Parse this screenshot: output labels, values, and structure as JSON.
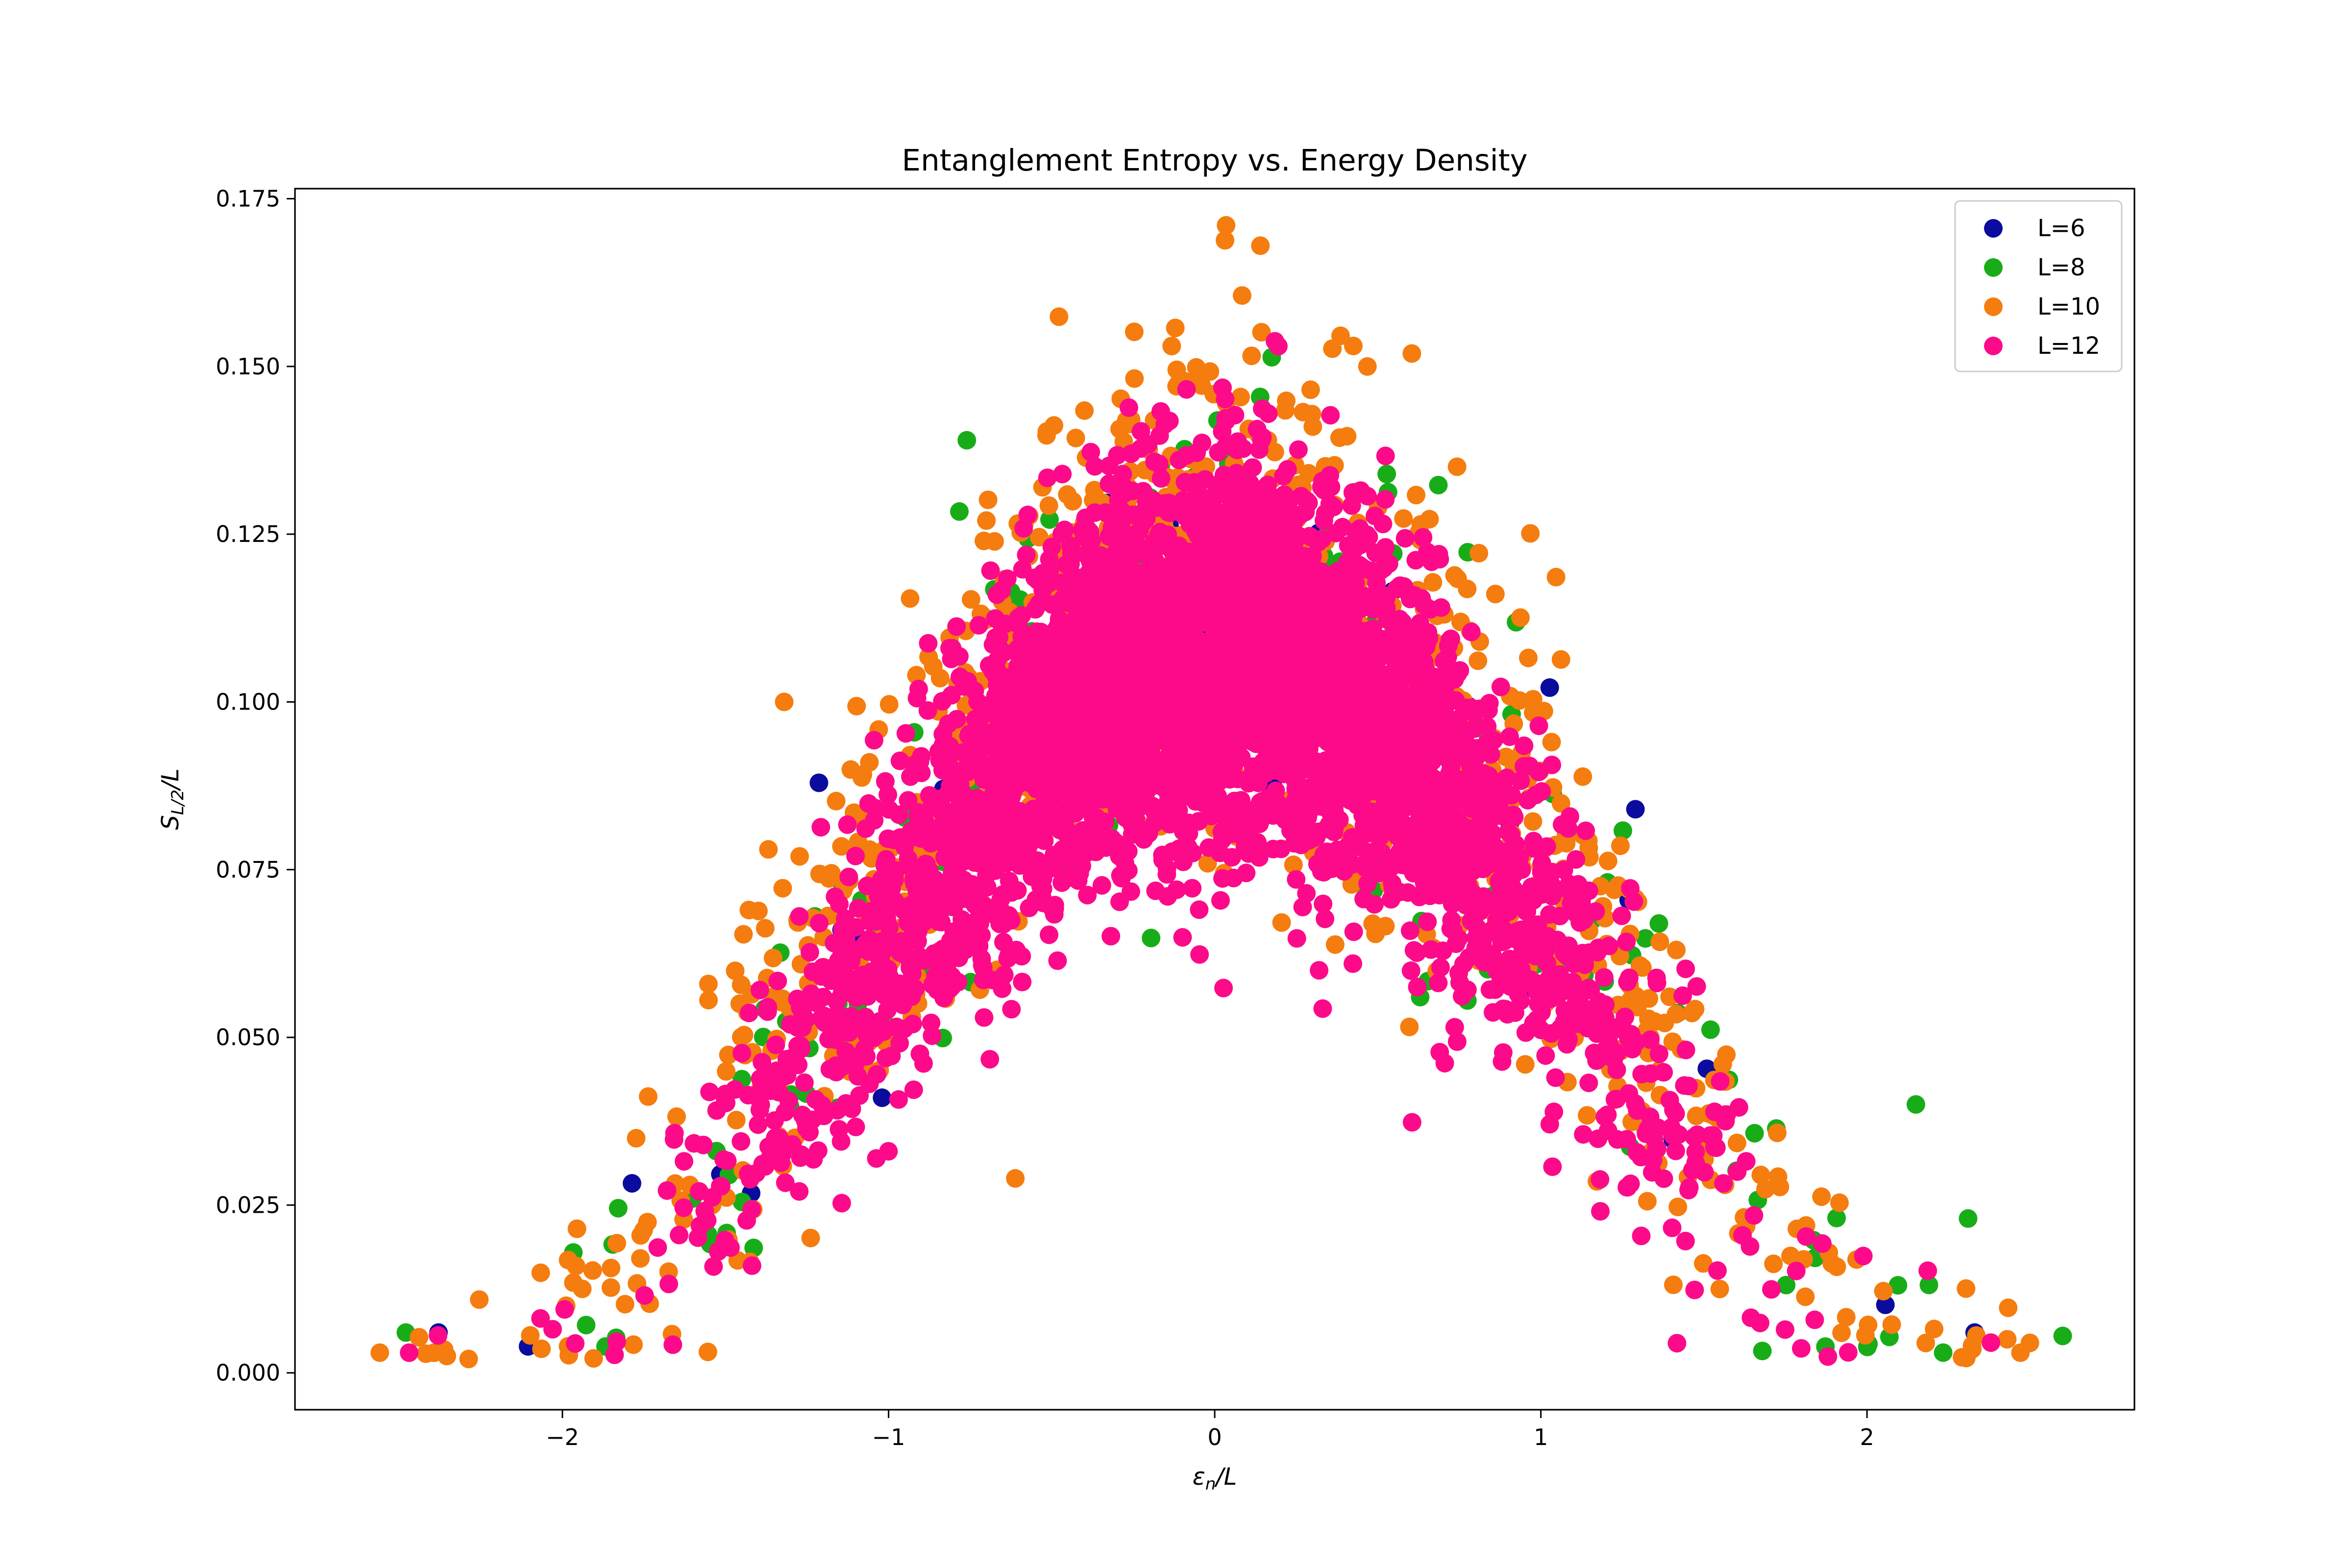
{
  "chart_data": {
    "type": "scatter",
    "title": "Entanglement Entropy vs. Energy Density",
    "xlabel": {
      "base": "ε",
      "sub": "n",
      "suffix": "/L"
    },
    "ylabel": {
      "base": "S",
      "sub": "L/2",
      "suffix": "/L"
    },
    "xlim": [
      -2.82,
      2.82
    ],
    "ylim": [
      -0.0055,
      0.1765
    ],
    "x_ticks": [
      -2,
      -1,
      0,
      1,
      2
    ],
    "x_tick_labels": [
      "−2",
      "−1",
      "0",
      "1",
      "2"
    ],
    "y_ticks": [
      0.0,
      0.025,
      0.05,
      0.075,
      0.1,
      0.125,
      0.15,
      0.175
    ],
    "y_tick_labels": [
      "0.000",
      "0.025",
      "0.050",
      "0.075",
      "0.100",
      "0.125",
      "0.150",
      "0.175"
    ],
    "grid": false,
    "legend_position": "top-right",
    "series": [
      {
        "name": "L=6",
        "color": "#0b0b9e",
        "count": 64,
        "peak": 0.112,
        "spread": 1.15,
        "sigma_x": 0.93,
        "noise": 0.012,
        "xmax": 2.45,
        "seed": 6,
        "outliers": [
          [
            -2.38,
            0.006
          ],
          [
            -1.02,
            0.041
          ],
          [
            2.33,
            0.006
          ],
          [
            1.29,
            0.084
          ]
        ]
      },
      {
        "name": "L=8",
        "color": "#18ad18",
        "count": 256,
        "peak": 0.114,
        "spread": 1.15,
        "sigma_x": 0.95,
        "noise": 0.013,
        "xmax": 2.55,
        "seed": 8,
        "outliers": [
          [
            -2.48,
            0.006
          ],
          [
            2.6,
            0.0055
          ],
          [
            2.31,
            0.023
          ],
          [
            2.15,
            0.04
          ],
          [
            -0.76,
            0.139
          ],
          [
            0.63,
            0.056
          ]
        ]
      },
      {
        "name": "L=10",
        "color": "#f57c0e",
        "count": 1024,
        "peak": 0.119,
        "spread": 1.16,
        "sigma_x": 0.92,
        "noise": 0.014,
        "xmax": 2.5,
        "seed": 10,
        "outliers": [
          [
            -2.56,
            0.003
          ],
          [
            2.43,
            0.005
          ],
          [
            0.14,
            0.168
          ],
          [
            -1.32,
            0.1
          ]
        ]
      },
      {
        "name": "L=12",
        "color": "#fc0a8a",
        "count": 4096,
        "peak": 0.108,
        "spread": 1.12,
        "sigma_x": 0.62,
        "noise": 0.011,
        "xmax": 2.45,
        "seed": 12,
        "outliers": [
          [
            -2.47,
            0.003
          ],
          [
            2.38,
            0.0045
          ],
          [
            -2.03,
            0.0065
          ],
          [
            -0.82,
            0.06
          ],
          [
            0.32,
            0.06
          ]
        ]
      }
    ]
  }
}
